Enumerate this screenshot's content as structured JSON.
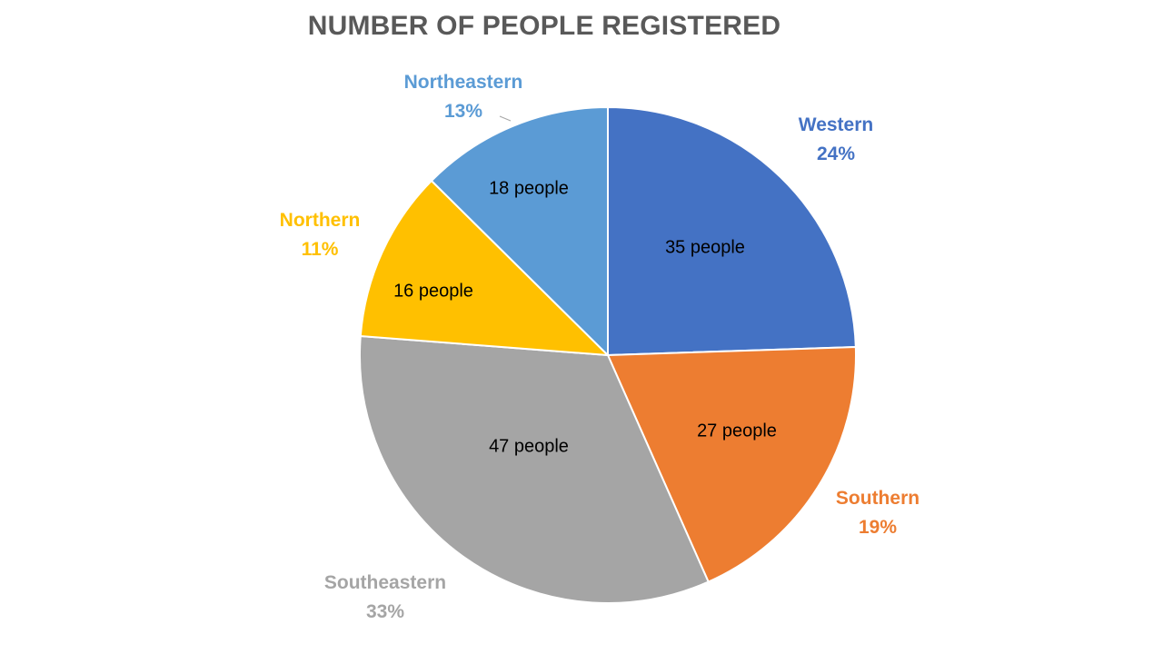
{
  "chart_data": {
    "type": "pie",
    "title": "NUMBER OF PEOPLE REGISTERED",
    "categories": [
      "Western",
      "Southern",
      "Southeastern",
      "Northern",
      "Northeastern"
    ],
    "values": [
      35,
      27,
      47,
      16,
      18
    ],
    "value_labels": [
      "35 people",
      "27 people",
      "47 people",
      "16 people",
      "18 people"
    ],
    "percent_labels": [
      "24%",
      "19%",
      "33%",
      "11%",
      "13%"
    ],
    "colors": [
      "#4472C4",
      "#ED7D31",
      "#A5A5A5",
      "#FFC000",
      "#5B9BD5"
    ],
    "start_angle": "12 o'clock",
    "direction": "clockwise",
    "legend": "none"
  }
}
